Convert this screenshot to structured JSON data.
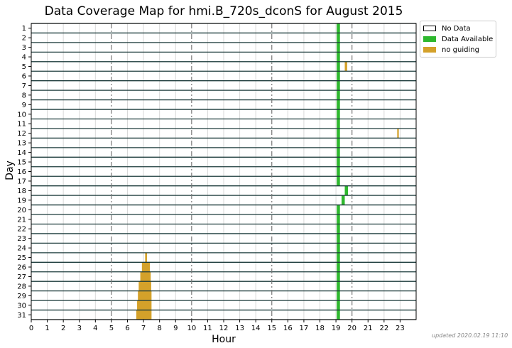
{
  "chart_data": {
    "type": "heatmap",
    "title": "Data Coverage Map for hmi.B_720s_dconS for August 2015",
    "xlabel": "Hour",
    "ylabel": "Day",
    "x_ticks": [
      "0",
      "1",
      "2",
      "3",
      "4",
      "5",
      "6",
      "7",
      "8",
      "9",
      "10",
      "11",
      "12",
      "13",
      "14",
      "15",
      "16",
      "17",
      "18",
      "19",
      "20",
      "21",
      "22",
      "23"
    ],
    "y_ticks": [
      "1",
      "2",
      "3",
      "4",
      "5",
      "6",
      "7",
      "8",
      "9",
      "10",
      "11",
      "12",
      "13",
      "14",
      "15",
      "16",
      "17",
      "18",
      "19",
      "20",
      "21",
      "22",
      "23",
      "24",
      "25",
      "26",
      "27",
      "28",
      "29",
      "30",
      "31"
    ],
    "xlim": [
      0,
      24
    ],
    "ylim": [
      1,
      31
    ],
    "dashed_vlines": [
      5,
      10,
      15,
      20
    ],
    "legend": {
      "position": "upper right outside",
      "items": [
        {
          "label": "No Data",
          "color": "#ffffff"
        },
        {
          "label": "Data Available",
          "color": "#2eb82e"
        },
        {
          "label": "no guiding",
          "color": "#d4a12a"
        }
      ]
    },
    "segments": [
      {
        "day": 1,
        "start": 19.05,
        "end": 19.25,
        "status": "Data Available"
      },
      {
        "day": 2,
        "start": 19.05,
        "end": 19.25,
        "status": "Data Available"
      },
      {
        "day": 3,
        "start": 19.05,
        "end": 19.25,
        "status": "Data Available"
      },
      {
        "day": 4,
        "start": 19.05,
        "end": 19.25,
        "status": "Data Available"
      },
      {
        "day": 5,
        "start": 19.05,
        "end": 19.25,
        "status": "Data Available"
      },
      {
        "day": 5,
        "start": 19.55,
        "end": 19.7,
        "status": "no guiding"
      },
      {
        "day": 6,
        "start": 19.05,
        "end": 19.25,
        "status": "Data Available"
      },
      {
        "day": 7,
        "start": 19.05,
        "end": 19.25,
        "status": "Data Available"
      },
      {
        "day": 8,
        "start": 19.05,
        "end": 19.25,
        "status": "Data Available"
      },
      {
        "day": 9,
        "start": 19.05,
        "end": 19.25,
        "status": "Data Available"
      },
      {
        "day": 10,
        "start": 19.05,
        "end": 19.25,
        "status": "Data Available"
      },
      {
        "day": 11,
        "start": 19.05,
        "end": 19.25,
        "status": "Data Available"
      },
      {
        "day": 12,
        "start": 19.05,
        "end": 19.25,
        "status": "Data Available"
      },
      {
        "day": 12,
        "start": 22.82,
        "end": 22.92,
        "status": "no guiding"
      },
      {
        "day": 13,
        "start": 19.05,
        "end": 19.25,
        "status": "Data Available"
      },
      {
        "day": 14,
        "start": 19.05,
        "end": 19.25,
        "status": "Data Available"
      },
      {
        "day": 15,
        "start": 19.05,
        "end": 19.25,
        "status": "Data Available"
      },
      {
        "day": 16,
        "start": 19.05,
        "end": 19.25,
        "status": "Data Available"
      },
      {
        "day": 17,
        "start": 19.05,
        "end": 19.25,
        "status": "Data Available"
      },
      {
        "day": 18,
        "start": 19.55,
        "end": 19.75,
        "status": "Data Available"
      },
      {
        "day": 19,
        "start": 19.35,
        "end": 19.55,
        "status": "Data Available"
      },
      {
        "day": 20,
        "start": 19.05,
        "end": 19.25,
        "status": "Data Available"
      },
      {
        "day": 21,
        "start": 19.05,
        "end": 19.25,
        "status": "Data Available"
      },
      {
        "day": 22,
        "start": 19.05,
        "end": 19.25,
        "status": "Data Available"
      },
      {
        "day": 23,
        "start": 19.05,
        "end": 19.25,
        "status": "Data Available"
      },
      {
        "day": 24,
        "start": 19.05,
        "end": 19.25,
        "status": "Data Available"
      },
      {
        "day": 25,
        "start": 19.05,
        "end": 19.25,
        "status": "Data Available"
      },
      {
        "day": 25,
        "start": 7.1,
        "end": 7.22,
        "status": "no guiding"
      },
      {
        "day": 26,
        "start": 19.05,
        "end": 19.25,
        "status": "Data Available"
      },
      {
        "day": 26,
        "start": 6.9,
        "end": 7.4,
        "status": "no guiding"
      },
      {
        "day": 27,
        "start": 19.05,
        "end": 19.25,
        "status": "Data Available"
      },
      {
        "day": 27,
        "start": 6.8,
        "end": 7.45,
        "status": "no guiding"
      },
      {
        "day": 28,
        "start": 19.05,
        "end": 19.25,
        "status": "Data Available"
      },
      {
        "day": 28,
        "start": 6.7,
        "end": 7.48,
        "status": "no guiding"
      },
      {
        "day": 29,
        "start": 19.05,
        "end": 19.25,
        "status": "Data Available"
      },
      {
        "day": 29,
        "start": 6.65,
        "end": 7.5,
        "status": "no guiding"
      },
      {
        "day": 30,
        "start": 19.05,
        "end": 19.25,
        "status": "Data Available"
      },
      {
        "day": 30,
        "start": 6.6,
        "end": 7.5,
        "status": "no guiding"
      },
      {
        "day": 31,
        "start": 19.05,
        "end": 19.25,
        "status": "Data Available"
      },
      {
        "day": 31,
        "start": 6.55,
        "end": 7.5,
        "status": "no guiding"
      }
    ]
  },
  "footer": "updated 2020.02.19 11:10"
}
